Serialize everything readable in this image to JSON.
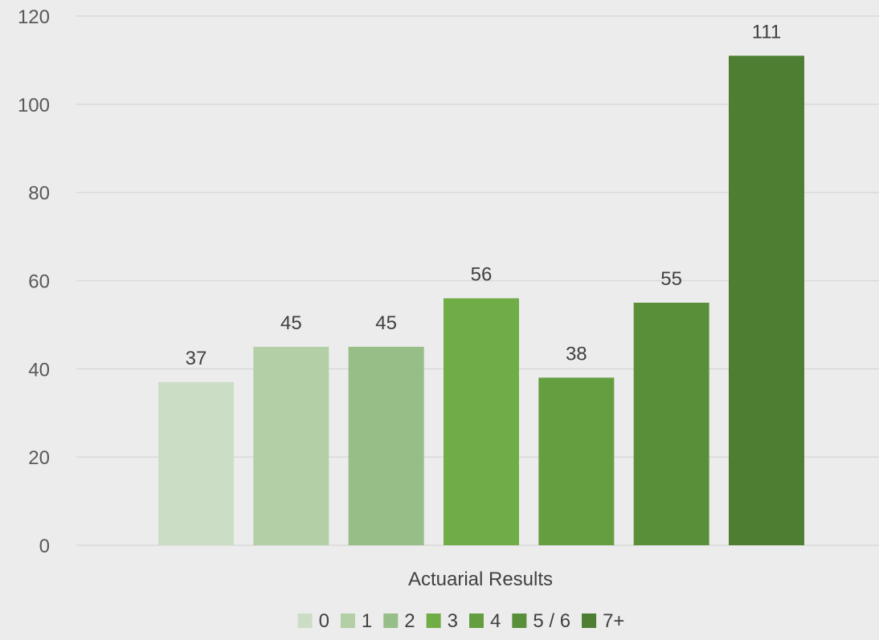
{
  "chart_data": {
    "type": "bar",
    "categories": [
      "Actuarial Results"
    ],
    "series": [
      {
        "name": "0",
        "values": [
          37
        ],
        "color": "#cbddc5"
      },
      {
        "name": "1",
        "values": [
          45
        ],
        "color": "#b3cfa6"
      },
      {
        "name": "2",
        "values": [
          45
        ],
        "color": "#97be87"
      },
      {
        "name": "3",
        "values": [
          56
        ],
        "color": "#70ad47"
      },
      {
        "name": "4",
        "values": [
          38
        ],
        "color": "#659e40"
      },
      {
        "name": "5 / 6",
        "values": [
          55
        ],
        "color": "#5a8f3a"
      },
      {
        "name": "7+",
        "values": [
          111
        ],
        "color": "#4e7e31"
      }
    ],
    "title": "",
    "xlabel": "",
    "ylabel": "",
    "ylim": [
      0,
      120
    ],
    "yticks": [
      0,
      20,
      40,
      60,
      80,
      100,
      120
    ],
    "grid": true,
    "legend": "bottom",
    "data_labels": true,
    "gridline_color": "#d9d9d9",
    "background": "#ececec"
  }
}
